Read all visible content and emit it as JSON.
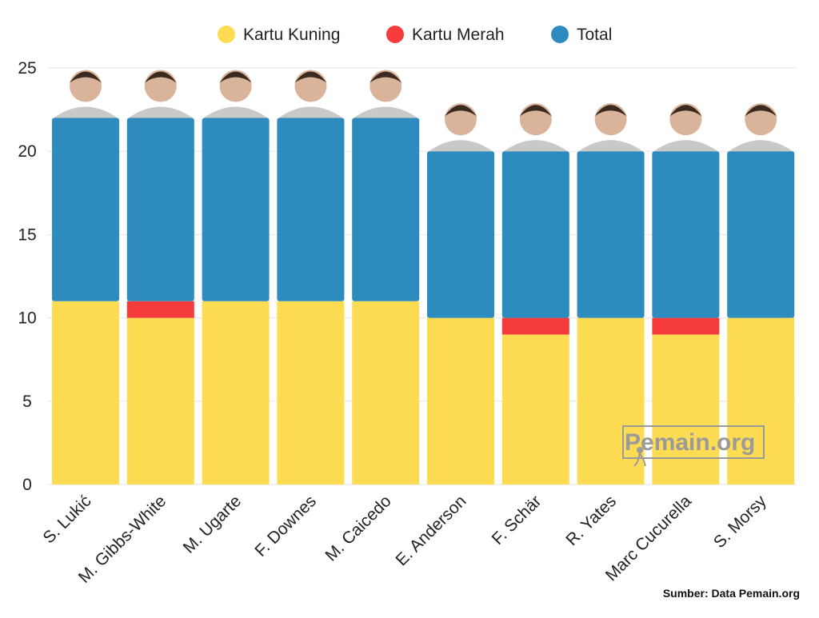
{
  "chart_data": {
    "type": "bar",
    "stacked": true,
    "categories": [
      "S. Lukić",
      "M. Gibbs-White",
      "M. Ugarte",
      "F. Downes",
      "M. Caicedo",
      "E. Anderson",
      "F. Schär",
      "R. Yates",
      "Marc Cucurella",
      "S. Morsy"
    ],
    "series": [
      {
        "name": "Kartu Kuning",
        "color": "#FDDB52",
        "values": [
          11,
          10,
          11,
          11,
          11,
          10,
          9,
          10,
          9,
          10
        ]
      },
      {
        "name": "Kartu Merah",
        "color": "#F53B3B",
        "values": [
          0,
          1,
          0,
          0,
          0,
          0,
          1,
          0,
          1,
          0
        ]
      },
      {
        "name": "Total",
        "color": "#2E8BBE",
        "values": [
          22,
          22,
          22,
          22,
          22,
          20,
          20,
          20,
          20,
          20
        ]
      }
    ],
    "ylim": [
      0,
      25
    ],
    "yticks": [
      0,
      5,
      10,
      15,
      20,
      25
    ],
    "grid": true,
    "legend_position": "top-center",
    "title": "",
    "xlabel": "",
    "ylabel": ""
  },
  "watermark": "Pemain.org",
  "source": "Sumber: Data Pemain.org",
  "colors": {
    "background": "#FFFFFF",
    "grid": "#E6E6E6",
    "text": "#222222"
  }
}
